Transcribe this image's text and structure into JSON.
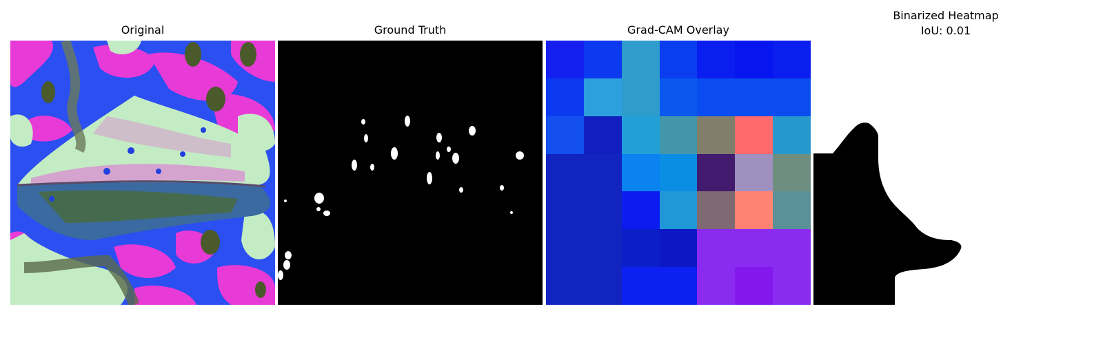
{
  "figure": {
    "panels": [
      {
        "title": "Original"
      },
      {
        "title": "Ground Truth"
      },
      {
        "title": "Grad-CAM Overlay"
      },
      {
        "title_line1": "Binarized Heatmap",
        "title_line2": "IoU: 0.01"
      }
    ],
    "gradcam_grid_colors": [
      [
        "#1520f0",
        "#0c3af0",
        "#2e9ccc",
        "#0a3cf0",
        "#0a1ef0",
        "#0716ef",
        "#0a1ef0"
      ],
      [
        "#0c3af0",
        "#2ba0dc",
        "#2e9ccc",
        "#0a58ee",
        "#0a4cf0",
        "#0a4cf0",
        "#0a4cf0"
      ],
      [
        "#1450f0",
        "#121fc0",
        "#239fd8",
        "#4396aa",
        "#817e6c",
        "#ff6a6c",
        "#2798cc"
      ],
      [
        "#1224c0",
        "#1224c0",
        "#0a82f0",
        "#0a8ee4",
        "#421a6e",
        "#a090c0",
        "#6e8e80"
      ],
      [
        "#1224c0",
        "#1224c0",
        "#0c1cf0",
        "#2098d8",
        "#7e6a72",
        "#ff8272",
        "#5a9098"
      ],
      [
        "#1224c0",
        "#1224c0",
        "#0c1ec8",
        "#0c18c4",
        "#8a2cf0",
        "#8a2cf0",
        "#8a2cf0"
      ],
      [
        "#1224c0",
        "#1224c0",
        "#0c20f0",
        "#0c20f0",
        "#8a2cf0",
        "#8418ec",
        "#8a2cf0"
      ]
    ],
    "colors": {
      "original_blue": "#2b4ff0",
      "original_magenta": "#e83ad6",
      "original_pale_green": "#c4ecc4",
      "original_dark_green": "#4a5a2a",
      "mask_black": "#000000",
      "mask_white": "#ffffff"
    }
  }
}
